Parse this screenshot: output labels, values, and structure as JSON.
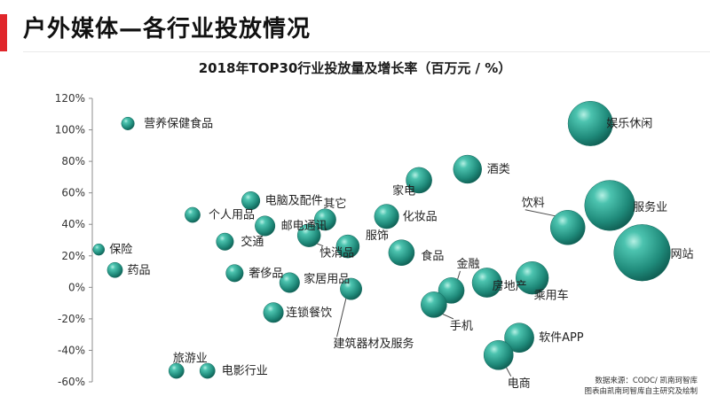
{
  "page": {
    "title": "户外媒体—各行业投放情况",
    "source_line1": "数据来源：CODC/ 凯南珂智库",
    "source_line2": "图表由凯南珂智库自主研究及绘制",
    "accent_color": "#e0262b",
    "bubble_color": "#2e9e8f"
  },
  "chart_data": {
    "type": "scatter",
    "title": "2018年TOP30行业投放量及增长率（百万元 / %）",
    "xlabel": "",
    "ylabel": "",
    "ylim": [
      -60,
      120
    ],
    "yticks": [
      "120%",
      "100%",
      "80%",
      "60%",
      "40%",
      "20%",
      "0%",
      "-20%",
      "-40%",
      "-60%"
    ],
    "grid": false,
    "points": [
      {
        "label": "营养保健食品",
        "x": 55,
        "y": 104,
        "size": 2.5
      },
      {
        "label": "娱乐休闲",
        "x": 770,
        "y": 104,
        "size": 30
      },
      {
        "label": "酒类",
        "x": 580,
        "y": 75,
        "size": 12
      },
      {
        "label": "家电",
        "x": 505,
        "y": 68,
        "size": 10
      },
      {
        "label": "电脑及配件",
        "x": 245,
        "y": 55,
        "size": 5
      },
      {
        "label": "其它",
        "x": 360,
        "y": 43,
        "size": 7
      },
      {
        "label": "个人用品",
        "x": 155,
        "y": 46,
        "size": 3.5
      },
      {
        "label": "化妆品",
        "x": 455,
        "y": 45,
        "size": 9
      },
      {
        "label": "邮电通讯",
        "x": 267,
        "y": 39,
        "size": 6
      },
      {
        "label": "服务业",
        "x": 800,
        "y": 52,
        "size": 38
      },
      {
        "label": "饮料",
        "x": 735,
        "y": 38,
        "size": 18
      },
      {
        "label": "快消品",
        "x": 335,
        "y": 33,
        "size": 8
      },
      {
        "label": "交通",
        "x": 205,
        "y": 29,
        "size": 4.5
      },
      {
        "label": "服饰",
        "x": 395,
        "y": 26,
        "size": 8
      },
      {
        "label": "食品",
        "x": 478,
        "y": 22,
        "size": 10
      },
      {
        "label": "网站",
        "x": 850,
        "y": 22,
        "size": 48
      },
      {
        "label": "保险",
        "x": 10,
        "y": 24,
        "size": 2
      },
      {
        "label": "药品",
        "x": 35,
        "y": 11,
        "size": 3.5
      },
      {
        "label": "奢侈品",
        "x": 220,
        "y": 9,
        "size": 4.5
      },
      {
        "label": "家居用品",
        "x": 305,
        "y": 3,
        "size": 6
      },
      {
        "label": "房地产",
        "x": 610,
        "y": 3,
        "size": 13
      },
      {
        "label": "乘用车",
        "x": 680,
        "y": 6,
        "size": 16
      },
      {
        "label": "金融",
        "x": 555,
        "y": -2,
        "size": 10
      },
      {
        "label": "建筑器材及服务",
        "x": 400,
        "y": -1,
        "size": 7
      },
      {
        "label": "手机",
        "x": 528,
        "y": -11,
        "size": 10
      },
      {
        "label": "连锁餐饮",
        "x": 280,
        "y": -16,
        "size": 6
      },
      {
        "label": "软件APP",
        "x": 660,
        "y": -32,
        "size": 13
      },
      {
        "label": "电商",
        "x": 628,
        "y": -43,
        "size": 13
      },
      {
        "label": "旅游业",
        "x": 130,
        "y": -53,
        "size": 3.5
      },
      {
        "label": "电影行业",
        "x": 178,
        "y": -53,
        "size": 3.5
      }
    ]
  }
}
